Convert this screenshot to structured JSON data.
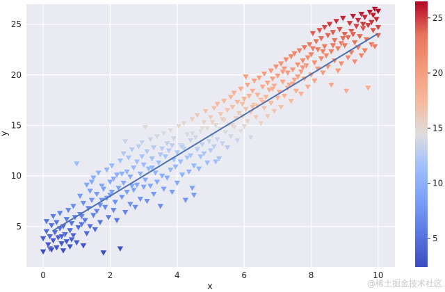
{
  "chart_data": {
    "type": "scatter",
    "title": "",
    "xlabel": "x",
    "ylabel": "y",
    "xlim": [
      -0.5,
      10.5
    ],
    "ylim": [
      1.0,
      27.0
    ],
    "x_ticks": [
      0,
      2,
      4,
      6,
      8,
      10
    ],
    "y_ticks": [
      5,
      10,
      15,
      20,
      25
    ],
    "grid": true,
    "background": "#eaeaf2",
    "marker": "triangle-down",
    "colormap": "coolwarm",
    "colorbar": {
      "min": 2.4,
      "max": 26.5,
      "ticks": [
        5,
        10,
        15,
        20,
        25
      ]
    },
    "fit_line": {
      "x": [
        0.3,
        10.0
      ],
      "y": [
        4.6,
        24.1
      ],
      "color": "#4c72b0"
    },
    "points_note_count": 500,
    "points": [
      [
        0.0,
        2.5
      ],
      [
        0.0,
        3.8
      ],
      [
        0.1,
        4.5
      ],
      [
        0.1,
        5.5
      ],
      [
        0.15,
        3.2
      ],
      [
        0.2,
        4.0
      ],
      [
        0.2,
        2.8
      ],
      [
        0.25,
        5.1
      ],
      [
        0.3,
        3.6
      ],
      [
        0.3,
        6.0
      ],
      [
        0.35,
        4.4
      ],
      [
        0.4,
        2.9
      ],
      [
        0.4,
        5.4
      ],
      [
        0.45,
        3.9
      ],
      [
        0.5,
        4.8
      ],
      [
        0.5,
        6.3
      ],
      [
        0.55,
        3.3
      ],
      [
        0.6,
        5.0
      ],
      [
        0.6,
        2.6
      ],
      [
        0.65,
        4.2
      ],
      [
        0.7,
        5.7
      ],
      [
        0.7,
        3.5
      ],
      [
        0.75,
        6.6
      ],
      [
        0.8,
        4.6
      ],
      [
        0.8,
        3.0
      ],
      [
        0.85,
        5.3
      ],
      [
        0.9,
        4.1
      ],
      [
        0.9,
        7.0
      ],
      [
        0.95,
        5.9
      ],
      [
        1.0,
        3.4
      ],
      [
        1.0,
        11.2
      ],
      [
        1.05,
        4.9
      ],
      [
        1.1,
        6.2
      ],
      [
        1.1,
        8.0
      ],
      [
        1.15,
        5.2
      ],
      [
        1.2,
        3.1
      ],
      [
        1.2,
        7.3
      ],
      [
        1.25,
        5.6
      ],
      [
        1.3,
        9.1
      ],
      [
        1.3,
        4.3
      ],
      [
        1.35,
        6.8
      ],
      [
        1.4,
        8.5
      ],
      [
        1.4,
        5.0
      ],
      [
        1.45,
        7.6
      ],
      [
        1.5,
        6.1
      ],
      [
        1.5,
        9.8
      ],
      [
        1.55,
        4.7
      ],
      [
        1.6,
        8.2
      ],
      [
        1.6,
        6.5
      ],
      [
        1.65,
        10.3
      ],
      [
        1.7,
        7.1
      ],
      [
        1.7,
        5.4
      ],
      [
        1.75,
        9.0
      ],
      [
        1.8,
        2.4
      ],
      [
        1.8,
        8.7
      ],
      [
        1.85,
        6.9
      ],
      [
        1.9,
        10.6
      ],
      [
        1.9,
        7.8
      ],
      [
        1.95,
        5.9
      ],
      [
        2.0,
        9.4
      ],
      [
        2.0,
        8.1
      ],
      [
        2.05,
        11.0
      ],
      [
        2.1,
        6.6
      ],
      [
        2.1,
        9.7
      ],
      [
        2.15,
        7.4
      ],
      [
        2.2,
        10.1
      ],
      [
        2.2,
        5.6
      ],
      [
        2.25,
        8.8
      ],
      [
        2.3,
        2.8
      ],
      [
        2.3,
        11.5
      ],
      [
        2.35,
        7.9
      ],
      [
        2.4,
        9.3
      ],
      [
        2.4,
        12.2
      ],
      [
        2.45,
        6.4
      ],
      [
        2.5,
        10.4
      ],
      [
        2.5,
        8.4
      ],
      [
        2.55,
        11.8
      ],
      [
        2.6,
        7.2
      ],
      [
        2.6,
        9.9
      ],
      [
        2.65,
        12.6
      ],
      [
        2.7,
        8.6
      ],
      [
        2.7,
        10.8
      ],
      [
        2.75,
        6.9
      ],
      [
        2.8,
        11.4
      ],
      [
        2.8,
        9.1
      ],
      [
        2.85,
        12.9
      ],
      [
        2.9,
        7.7
      ],
      [
        2.9,
        10.2
      ],
      [
        2.95,
        13.3
      ],
      [
        3.0,
        8.9
      ],
      [
        3.0,
        11.1
      ],
      [
        3.05,
        9.6
      ],
      [
        3.1,
        12.4
      ],
      [
        3.1,
        7.5
      ],
      [
        3.15,
        10.7
      ],
      [
        3.2,
        13.6
      ],
      [
        3.2,
        9.0
      ],
      [
        3.25,
        11.7
      ],
      [
        3.3,
        8.2
      ],
      [
        3.3,
        12.8
      ],
      [
        3.35,
        10.3
      ],
      [
        3.4,
        13.9
      ],
      [
        3.4,
        9.4
      ],
      [
        3.45,
        11.3
      ],
      [
        3.5,
        7.0
      ],
      [
        3.5,
        12.1
      ],
      [
        3.55,
        10.0
      ],
      [
        3.6,
        14.2
      ],
      [
        3.6,
        8.7
      ],
      [
        3.65,
        11.9
      ],
      [
        3.7,
        13.2
      ],
      [
        3.7,
        9.8
      ],
      [
        3.75,
        12.5
      ],
      [
        3.8,
        10.6
      ],
      [
        3.8,
        14.5
      ],
      [
        3.85,
        8.4
      ],
      [
        3.9,
        11.6
      ],
      [
        3.9,
        13.7
      ],
      [
        3.95,
        10.9
      ],
      [
        4.0,
        12.3
      ],
      [
        4.0,
        9.3
      ],
      [
        4.05,
        14.9
      ],
      [
        4.1,
        11.4
      ],
      [
        4.1,
        13.0
      ],
      [
        4.15,
        10.1
      ],
      [
        4.2,
        12.7
      ],
      [
        4.2,
        15.2
      ],
      [
        4.25,
        7.6
      ],
      [
        4.3,
        11.8
      ],
      [
        4.3,
        14.1
      ],
      [
        4.35,
        10.4
      ],
      [
        4.4,
        13.5
      ],
      [
        4.4,
        12.0
      ],
      [
        4.45,
        15.6
      ],
      [
        4.5,
        11.0
      ],
      [
        4.5,
        8.1
      ],
      [
        4.55,
        13.8
      ],
      [
        4.6,
        12.6
      ],
      [
        4.6,
        16.0
      ],
      [
        4.65,
        10.7
      ],
      [
        4.7,
        14.4
      ],
      [
        4.7,
        11.9
      ],
      [
        4.75,
        13.1
      ],
      [
        4.8,
        15.3
      ],
      [
        4.8,
        12.2
      ],
      [
        4.85,
        16.4
      ],
      [
        4.9,
        11.3
      ],
      [
        4.9,
        14.7
      ],
      [
        4.95,
        13.4
      ],
      [
        5.0,
        12.5
      ],
      [
        5.0,
        15.8
      ],
      [
        5.05,
        14.0
      ],
      [
        5.1,
        16.7
      ],
      [
        5.1,
        12.9
      ],
      [
        5.15,
        15.0
      ],
      [
        5.2,
        13.6
      ],
      [
        5.2,
        17.1
      ],
      [
        5.25,
        11.7
      ],
      [
        5.3,
        14.6
      ],
      [
        5.3,
        16.1
      ],
      [
        5.35,
        13.2
      ],
      [
        5.4,
        15.5
      ],
      [
        5.4,
        17.4
      ],
      [
        5.45,
        14.3
      ],
      [
        5.5,
        12.8
      ],
      [
        5.5,
        16.5
      ],
      [
        5.55,
        15.1
      ],
      [
        5.6,
        17.8
      ],
      [
        5.6,
        13.9
      ],
      [
        5.65,
        16.8
      ],
      [
        5.7,
        14.8
      ],
      [
        5.7,
        18.2
      ],
      [
        5.75,
        15.7
      ],
      [
        5.8,
        13.5
      ],
      [
        5.8,
        17.3
      ],
      [
        5.85,
        16.2
      ],
      [
        5.9,
        14.4
      ],
      [
        5.9,
        18.6
      ],
      [
        5.95,
        15.9
      ],
      [
        6.0,
        17.6
      ],
      [
        6.0,
        14.9
      ],
      [
        6.05,
        16.6
      ],
      [
        6.1,
        19.0
      ],
      [
        6.1,
        15.4
      ],
      [
        6.15,
        17.9
      ],
      [
        6.2,
        16.3
      ],
      [
        6.2,
        13.8
      ],
      [
        6.25,
        18.4
      ],
      [
        6.3,
        17.0
      ],
      [
        6.3,
        19.4
      ],
      [
        6.35,
        15.8
      ],
      [
        6.4,
        18.0
      ],
      [
        6.4,
        16.9
      ],
      [
        6.45,
        19.7
      ],
      [
        6.5,
        17.5
      ],
      [
        6.5,
        15.2
      ],
      [
        6.55,
        18.8
      ],
      [
        6.6,
        16.7
      ],
      [
        6.6,
        20.1
      ],
      [
        6.65,
        17.8
      ],
      [
        6.7,
        19.2
      ],
      [
        6.7,
        15.9
      ],
      [
        6.75,
        18.5
      ],
      [
        6.8,
        20.4
      ],
      [
        6.8,
        17.2
      ],
      [
        6.85,
        19.6
      ],
      [
        6.9,
        16.4
      ],
      [
        6.9,
        18.9
      ],
      [
        6.95,
        20.8
      ],
      [
        7.0,
        17.7
      ],
      [
        7.0,
        19.9
      ],
      [
        7.05,
        18.3
      ],
      [
        7.1,
        21.1
      ],
      [
        7.1,
        16.8
      ],
      [
        7.15,
        19.3
      ],
      [
        7.2,
        20.6
      ],
      [
        7.2,
        17.9
      ],
      [
        7.25,
        21.5
      ],
      [
        7.3,
        18.7
      ],
      [
        7.3,
        20.2
      ],
      [
        7.35,
        19.0
      ],
      [
        7.4,
        21.8
      ],
      [
        7.4,
        17.4
      ],
      [
        7.45,
        20.5
      ],
      [
        7.5,
        19.5
      ],
      [
        7.5,
        22.1
      ],
      [
        7.55,
        18.4
      ],
      [
        7.6,
        21.0
      ],
      [
        7.6,
        19.8
      ],
      [
        7.65,
        22.4
      ],
      [
        7.7,
        20.3
      ],
      [
        7.7,
        18.1
      ],
      [
        7.75,
        21.4
      ],
      [
        7.8,
        19.6
      ],
      [
        7.8,
        22.7
      ],
      [
        7.85,
        20.9
      ],
      [
        7.9,
        18.8
      ],
      [
        7.9,
        21.7
      ],
      [
        7.95,
        23.0
      ],
      [
        8.0,
        20.0
      ],
      [
        8.0,
        22.0
      ],
      [
        8.05,
        24.1
      ],
      [
        8.1,
        21.2
      ],
      [
        8.1,
        19.4
      ],
      [
        8.15,
        23.3
      ],
      [
        8.2,
        22.5
      ],
      [
        8.2,
        20.6
      ],
      [
        8.25,
        24.4
      ],
      [
        8.3,
        21.6
      ],
      [
        8.3,
        23.6
      ],
      [
        8.35,
        20.2
      ],
      [
        8.4,
        22.8
      ],
      [
        8.4,
        24.7
      ],
      [
        8.45,
        21.9
      ],
      [
        8.5,
        23.9
      ],
      [
        8.5,
        20.8
      ],
      [
        8.55,
        25.0
      ],
      [
        8.6,
        22.3
      ],
      [
        8.6,
        19.0
      ],
      [
        8.65,
        24.2
      ],
      [
        8.7,
        21.4
      ],
      [
        8.7,
        23.4
      ],
      [
        8.75,
        25.3
      ],
      [
        8.8,
        22.6
      ],
      [
        8.8,
        20.4
      ],
      [
        8.85,
        24.5
      ],
      [
        8.9,
        23.1
      ],
      [
        8.9,
        21.1
      ],
      [
        8.95,
        25.6
      ],
      [
        9.0,
        22.9
      ],
      [
        9.0,
        24.0
      ],
      [
        9.05,
        18.4
      ],
      [
        9.1,
        23.7
      ],
      [
        9.1,
        21.7
      ],
      [
        9.15,
        25.1
      ],
      [
        9.2,
        24.3
      ],
      [
        9.2,
        22.2
      ],
      [
        9.25,
        25.8
      ],
      [
        9.3,
        23.2
      ],
      [
        9.3,
        21.3
      ],
      [
        9.35,
        24.8
      ],
      [
        9.4,
        22.7
      ],
      [
        9.4,
        25.4
      ],
      [
        9.45,
        23.8
      ],
      [
        9.5,
        21.9
      ],
      [
        9.5,
        26.0
      ],
      [
        9.55,
        24.6
      ],
      [
        9.6,
        22.4
      ],
      [
        9.6,
        25.7
      ],
      [
        9.65,
        23.5
      ],
      [
        9.7,
        24.9
      ],
      [
        9.7,
        18.7
      ],
      [
        9.75,
        26.2
      ],
      [
        9.8,
        23.0
      ],
      [
        9.8,
        25.2
      ],
      [
        9.85,
        24.4
      ],
      [
        9.9,
        26.5
      ],
      [
        9.9,
        22.8
      ],
      [
        9.95,
        25.5
      ],
      [
        10.0,
        23.9
      ],
      [
        10.0,
        26.3
      ],
      [
        10.0,
        24.7
      ],
      [
        0.25,
        2.7
      ],
      [
        0.55,
        4.0
      ],
      [
        0.85,
        3.7
      ],
      [
        1.15,
        6.0
      ],
      [
        1.45,
        9.4
      ],
      [
        1.75,
        7.6
      ],
      [
        2.05,
        8.4
      ],
      [
        2.35,
        10.2
      ],
      [
        2.65,
        9.0
      ],
      [
        2.95,
        11.9
      ],
      [
        3.25,
        10.8
      ],
      [
        3.55,
        12.7
      ],
      [
        3.85,
        13.0
      ],
      [
        4.15,
        12.9
      ],
      [
        4.45,
        14.2
      ],
      [
        4.75,
        14.7
      ],
      [
        5.05,
        15.3
      ],
      [
        5.35,
        15.6
      ],
      [
        5.65,
        15.0
      ],
      [
        5.95,
        17.1
      ],
      [
        6.25,
        16.8
      ],
      [
        6.55,
        17.3
      ],
      [
        6.85,
        18.6
      ],
      [
        7.15,
        20.3
      ],
      [
        7.45,
        19.1
      ],
      [
        7.75,
        20.7
      ],
      [
        8.05,
        22.6
      ],
      [
        8.35,
        22.3
      ],
      [
        8.65,
        22.9
      ],
      [
        8.95,
        23.6
      ],
      [
        9.25,
        24.0
      ],
      [
        9.55,
        25.0
      ],
      [
        9.85,
        25.9
      ],
      [
        4.45,
        8.8
      ],
      [
        5.15,
        11.4
      ],
      [
        3.05,
        14.8
      ],
      [
        2.45,
        13.4
      ],
      [
        6.05,
        19.8
      ]
    ]
  },
  "watermark": "@稀土掘金技术社区"
}
